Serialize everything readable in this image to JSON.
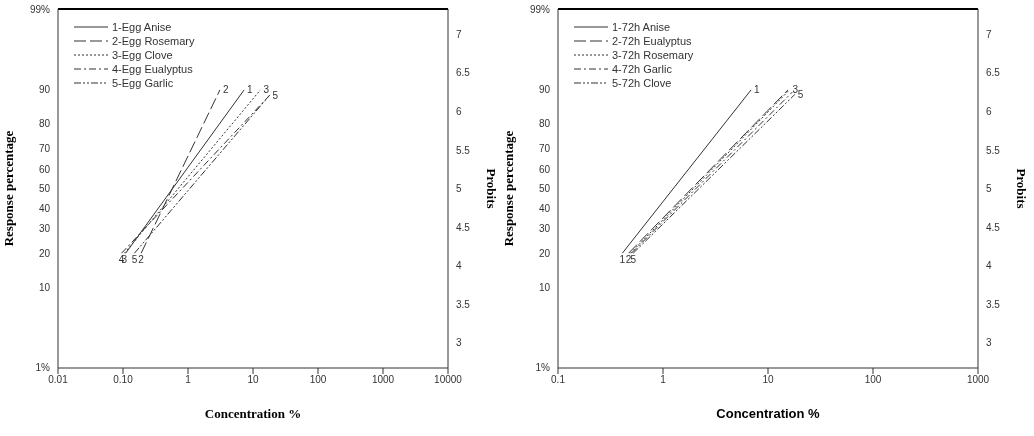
{
  "chart_data": [
    {
      "type": "line",
      "xlabel": "Concentration %",
      "ylabel": "Response percentage",
      "y2label": "Probits",
      "log": "x",
      "legend": "top left",
      "xlim": [
        0.01,
        10000
      ],
      "xticks": [
        0.01,
        {
          "value": 0.1,
          "label": "0.10"
        },
        1,
        10,
        100,
        1000,
        10000
      ],
      "ylim": [
        2.67,
        7.33
      ],
      "yticks": [
        3,
        3.5,
        4,
        4.5,
        5,
        5.5,
        6,
        6.5,
        7
      ],
      "series": [
        {
          "name": "1-Egg Anise",
          "color": "#333333",
          "line_style": "solid",
          "x": [
            0.11,
            7.3
          ],
          "values": [
            4.16,
            6.28
          ]
        },
        {
          "name": "2-Egg Rosemary",
          "color": "#333333",
          "line_style": "dashed",
          "x": [
            0.19,
            3.1
          ],
          "values": [
            4.16,
            6.28
          ]
        },
        {
          "name": "3-Egg Clove",
          "color": "#333333",
          "line_style": "dotted",
          "x": [
            0.105,
            13
          ],
          "values": [
            4.16,
            6.28
          ]
        },
        {
          "name": "4-Egg Eualyptus",
          "color": "#333333",
          "line_style": "dashdot",
          "x": [
            0.095,
            18
          ],
          "values": [
            4.16,
            6.21
          ]
        },
        {
          "name": "5-Egg Garlic",
          "color": "#333333",
          "line_style": "dashdotdot",
          "x": [
            0.15,
            18
          ],
          "values": [
            4.16,
            6.21
          ]
        }
      ],
      "annotations": [
        "1%",
        "10",
        "20",
        "30",
        "40",
        "50",
        "60",
        "70",
        "80",
        "90",
        "99%",
        {
          "text": "2",
          "x": 3.1,
          "y": 6.28
        },
        {
          "text": "1",
          "x": 7.3,
          "y": 6.28
        },
        {
          "text": "3",
          "x": 13,
          "y": 6.28
        },
        {
          "text": "5",
          "x": 18,
          "y": 6.21
        },
        {
          "text": "4",
          "x": 0.095,
          "y": 4.16
        },
        {
          "text": "3",
          "x": 0.105,
          "y": 4.16
        },
        {
          "text": "5",
          "x": 0.15,
          "y": 4.16
        },
        {
          "text": "2",
          "x": 0.19,
          "y": 4.16
        }
      ]
    },
    {
      "type": "line",
      "xlabel": "Concentration %",
      "ylabel": "Response percentage",
      "y2label": "Probits",
      "log": "x",
      "legend": "top left",
      "xlim": [
        0.1,
        1000
      ],
      "xticks": [
        0.1,
        1,
        10,
        100,
        1000
      ],
      "ylim": [
        2.67,
        7.33
      ],
      "yticks": [
        3,
        3.5,
        4,
        4.5,
        5,
        5.5,
        6,
        6.5,
        7
      ],
      "series": [
        {
          "name": "1-72h Anise",
          "color": "#333333",
          "line_style": "solid",
          "x": [
            0.41,
            6.9
          ],
          "values": [
            4.16,
            6.28
          ]
        },
        {
          "name": "2-72h Eualyptus",
          "color": "#333333",
          "line_style": "dashed",
          "x": [
            0.47,
            15.5
          ],
          "values": [
            4.16,
            6.28
          ]
        },
        {
          "name": "3-72h Rosemary",
          "color": "#333333",
          "line_style": "dotted",
          "x": [
            0.49,
            16
          ],
          "values": [
            4.16,
            6.28
          ]
        },
        {
          "name": "4-72h Garlic",
          "color": "#333333",
          "line_style": "dashdot",
          "x": [
            0.5,
            17
          ],
          "values": [
            4.16,
            6.25
          ]
        },
        {
          "name": "5-72h Clove",
          "color": "#333333",
          "line_style": "dashdotdot",
          "x": [
            0.52,
            18
          ],
          "values": [
            4.16,
            6.22
          ]
        }
      ],
      "annotations": [
        "1%",
        "10",
        "20",
        "30",
        "40",
        "50",
        "60",
        "70",
        "80",
        "90",
        "99%",
        {
          "text": "1",
          "x": 6.9,
          "y": 6.28
        },
        {
          "text": "3",
          "x": 16,
          "y": 6.28
        },
        {
          "text": "5",
          "x": 18,
          "y": 6.22
        },
        {
          "text": "1",
          "x": 0.41,
          "y": 4.16
        },
        {
          "text": "2",
          "x": 0.47,
          "y": 4.16
        },
        {
          "text": "5",
          "x": 0.52,
          "y": 4.16
        }
      ]
    }
  ]
}
